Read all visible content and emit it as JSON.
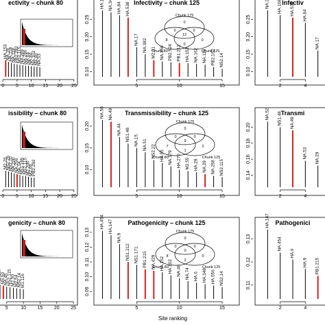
{
  "figure": {
    "xlabel": "Site ranking"
  },
  "chart_data": [
    {
      "type": "bar",
      "title": "ectivity – chunk 80",
      "xticks": [
        0,
        5,
        10,
        15,
        20,
        25
      ],
      "yticks": [],
      "bars": [
        {
          "x": 1,
          "value": 0.107,
          "label": "HA.153",
          "red": true
        },
        {
          "x": 2,
          "value": 0.104,
          "label": "NA.19"
        },
        {
          "x": 3,
          "value": 0.102,
          "label": "HA.118"
        },
        {
          "x": 4,
          "value": 0.1,
          "label": "NA.118"
        },
        {
          "x": 5,
          "value": 0.099,
          "label": "PB2.292"
        },
        {
          "x": 6,
          "value": 0.098,
          "label": "NS2.115"
        },
        {
          "x": 7,
          "value": 0.097,
          "label": "NA.286"
        },
        {
          "x": 8,
          "value": 0.096,
          "label": "NA.286"
        },
        {
          "x": 9,
          "value": 0.096,
          "label": "NA.64"
        },
        {
          "x": 10,
          "value": 0.095,
          "label": "NA.84"
        },
        {
          "x": 11,
          "value": 0.094,
          "label": "NA.102"
        },
        {
          "x": 12,
          "value": 0.094,
          "label": "NA.93"
        },
        {
          "x": 13,
          "value": 0.093,
          "label": "NA.53"
        }
      ]
    },
    {
      "type": "bar",
      "title": "Infectivity – chunk 125",
      "xticks": [
        5,
        10,
        15
      ],
      "yticks": [
        0.1,
        0.15,
        0.2,
        0.25
      ],
      "ylim": [
        0.085,
        0.29
      ],
      "bars": [
        {
          "x": 1,
          "value": 0.276,
          "label": "HA.108"
        },
        {
          "x": 2,
          "value": 0.27,
          "label": "NA.340"
        },
        {
          "x": 3,
          "value": 0.262,
          "label": "HA.84"
        },
        {
          "x": 4,
          "value": 0.255,
          "label": "HA.538",
          "red": true
        },
        {
          "x": 5,
          "value": 0.17,
          "label": "NA.17"
        },
        {
          "x": 6,
          "value": 0.15,
          "label": "NA.382"
        },
        {
          "x": 7,
          "value": 0.133,
          "label": "M2.31",
          "red": true
        },
        {
          "x": 8,
          "value": 0.129,
          "label": "NA.356"
        },
        {
          "x": 9,
          "value": 0.127,
          "label": "PB2.524"
        },
        {
          "x": 10,
          "value": 0.125,
          "label": "PB1.212",
          "red": true
        },
        {
          "x": 11,
          "value": 0.124,
          "label": "HA.152"
        },
        {
          "x": 12,
          "value": 0.122,
          "label": "NA.162"
        },
        {
          "x": 13,
          "value": 0.12,
          "label": "NA.116"
        },
        {
          "x": 14,
          "value": 0.113,
          "label": "PB2.162"
        },
        {
          "x": 15,
          "value": 0.108,
          "label": "NS2.14"
        }
      ],
      "venn": {
        "chunk175": "Chunk 175",
        "chunk80": "Chunk 80",
        "chunk125": "Chunk 125",
        "only175": "0",
        "only80": "8",
        "only125": "0",
        "a": "0",
        "b": "0",
        "c": "0",
        "center": "12"
      }
    },
    {
      "type": "bar",
      "title": "Infectiv",
      "xticks": [
        2,
        4
      ],
      "yticks": [
        0.1,
        0.15,
        0.2,
        0.25
      ],
      "ylim": [
        0.085,
        0.29
      ],
      "bars": [
        {
          "x": 1,
          "value": 0.276,
          "label": "NA.340"
        },
        {
          "x": 2,
          "value": 0.262,
          "label": "HA.108"
        },
        {
          "x": 3,
          "value": 0.255,
          "label": "HA.538",
          "red": true
        },
        {
          "x": 4,
          "value": 0.24,
          "label": "HA.84"
        },
        {
          "x": 5,
          "value": 0.16,
          "label": "NA.17"
        }
      ]
    },
    {
      "type": "bar",
      "title": "issibility – chunk 80",
      "xticks": [
        0,
        5,
        10,
        15,
        20,
        25
      ],
      "yticks": [],
      "bars": [
        {
          "x": 1,
          "value": 0.104,
          "label": "M2.26"
        },
        {
          "x": 2,
          "value": 0.103,
          "label": "NS2.26"
        },
        {
          "x": 3,
          "value": 0.102,
          "label": "NS2.70"
        },
        {
          "x": 4,
          "value": 0.101,
          "label": "NA.200"
        },
        {
          "x": 5,
          "value": 0.1,
          "label": "NA.256",
          "red": true
        },
        {
          "x": 6,
          "value": 0.099,
          "label": "HA.14"
        },
        {
          "x": 7,
          "value": 0.098,
          "label": "NS1.195"
        },
        {
          "x": 8,
          "value": 0.098,
          "label": "NS2.115"
        },
        {
          "x": 9,
          "value": 0.097,
          "label": "M2.200"
        },
        {
          "x": 10,
          "value": 0.096,
          "label": "M2.66"
        },
        {
          "x": 11,
          "value": 0.096,
          "label": "PB2.292"
        }
      ]
    },
    {
      "type": "bar",
      "title": "Transmissibility – chunk 125",
      "xticks": [
        5,
        10,
        15
      ],
      "yticks": [
        0.1,
        0.15,
        0.2
      ],
      "ylim": [
        0.06,
        0.225
      ],
      "bars": [
        {
          "x": 1,
          "value": 0.214,
          "label": "NA.50"
        },
        {
          "x": 2,
          "value": 0.21,
          "label": "NA.49",
          "red": true
        },
        {
          "x": 3,
          "value": 0.175,
          "label": "NA.44"
        },
        {
          "x": 4,
          "value": 0.16,
          "label": "NS1.48"
        },
        {
          "x": 5,
          "value": 0.15,
          "label": "NA.15"
        },
        {
          "x": 6,
          "value": 0.14,
          "label": "NA.51"
        },
        {
          "x": 7,
          "value": 0.122,
          "label": "NS2.22"
        },
        {
          "x": 8,
          "value": 0.115,
          "label": "HA.55"
        },
        {
          "x": 9,
          "value": 0.108,
          "label": "NA.179"
        },
        {
          "x": 10,
          "value": 0.1,
          "label": "HA.270"
        },
        {
          "x": 11,
          "value": 0.097,
          "label": "M2.55"
        },
        {
          "x": 12,
          "value": 0.094,
          "label": "HA.29"
        },
        {
          "x": 13,
          "value": 0.09,
          "label": "NA.29",
          "red": true
        },
        {
          "x": 14,
          "value": 0.086,
          "label": "NA.258"
        },
        {
          "x": 15,
          "value": 0.083,
          "label": "NS2.115"
        }
      ],
      "venn": {
        "chunk175": "Chunk 175",
        "chunk80": "Chunk 80",
        "chunk125": "Chunk 125",
        "only175": "0",
        "only80": "7",
        "only125": "2",
        "a": "0",
        "b": "0",
        "c": "1",
        "center": "9"
      }
    },
    {
      "type": "bar",
      "title": "Transmi",
      "xticks": [
        2,
        4
      ],
      "yticks": [
        0.14,
        0.16,
        0.18,
        0.2
      ],
      "ylim": [
        0.125,
        0.215
      ],
      "bars": [
        {
          "x": 1,
          "value": 0.207,
          "label": "NA.52"
        },
        {
          "x": 2,
          "value": 0.2,
          "label": "NS1.48"
        },
        {
          "x": 3,
          "value": 0.196,
          "label": "NA.49",
          "red": true
        },
        {
          "x": 4,
          "value": 0.158,
          "label": "NA.53"
        },
        {
          "x": 5,
          "value": 0.152,
          "label": "NA.29"
        }
      ]
    },
    {
      "type": "bar",
      "title": "genicity – chunk 80",
      "xticks": [
        5,
        10,
        15,
        20,
        25
      ],
      "yticks": [],
      "bars": [
        {
          "x": 1,
          "value": 0.108,
          "label": "NS1.171"
        },
        {
          "x": 2,
          "value": 0.106,
          "label": "PB1.374",
          "red": true
        },
        {
          "x": 3,
          "value": 0.104,
          "label": "NS.167"
        },
        {
          "x": 4,
          "value": 0.102,
          "label": "NS.50",
          "red": true
        },
        {
          "x": 5,
          "value": 0.1,
          "label": "NA.45"
        },
        {
          "x": 6,
          "value": 0.099,
          "label": "NS2.115"
        },
        {
          "x": 7,
          "value": 0.098,
          "label": "M2.50"
        },
        {
          "x": 8,
          "value": 0.097,
          "label": "M2.54"
        },
        {
          "x": 9,
          "value": 0.096,
          "label": "NS2.14"
        },
        {
          "x": 10,
          "value": 0.095,
          "label": "M1.116"
        }
      ]
    },
    {
      "type": "bar",
      "title": "Pathogenicity – chunk 125",
      "xticks": [
        5,
        10,
        15
      ],
      "yticks": [
        0.09,
        0.1,
        0.11,
        0.12,
        0.13
      ],
      "ylim": [
        0.085,
        0.135
      ],
      "bars": [
        {
          "x": 1,
          "value": 0.131,
          "label": "HA.454"
        },
        {
          "x": 2,
          "value": 0.128,
          "label": "HA.147"
        },
        {
          "x": 3,
          "value": 0.122,
          "label": "NA.9"
        },
        {
          "x": 4,
          "value": 0.11,
          "label": "NS1.212",
          "red": true
        },
        {
          "x": 5,
          "value": 0.108,
          "label": "NS1.171"
        },
        {
          "x": 6,
          "value": 0.105,
          "label": "PB1.215",
          "red": true
        },
        {
          "x": 7,
          "value": 0.104,
          "label": "NA.429",
          "red": true
        },
        {
          "x": 8,
          "value": 0.103,
          "label": "HA.152"
        },
        {
          "x": 9,
          "value": 0.101,
          "label": "HA.102"
        },
        {
          "x": 10,
          "value": 0.099,
          "label": "NA.48"
        },
        {
          "x": 11,
          "value": 0.097,
          "label": "NA.74"
        },
        {
          "x": 12,
          "value": 0.096,
          "label": "HA.6"
        },
        {
          "x": 13,
          "value": 0.095,
          "label": "HA.348"
        },
        {
          "x": 14,
          "value": 0.094,
          "label": "HA.556"
        },
        {
          "x": 15,
          "value": 0.093,
          "label": "NS2.14"
        }
      ],
      "venn": {
        "chunk175": "Chunk 175",
        "chunk80": "Chunk 80",
        "chunk125": "Chunk 125",
        "only175": "0",
        "only80": "8",
        "only125": "0",
        "a": "0",
        "b": "0",
        "c": "2",
        "center": "0"
      }
    },
    {
      "type": "bar",
      "title": "Pathogenici",
      "xticks": [
        2,
        4
      ],
      "yticks": [
        0.11,
        0.12,
        0.13
      ],
      "ylim": [
        0.104,
        0.136
      ],
      "bars": [
        {
          "x": 1,
          "value": 0.134,
          "label": "HA.147"
        },
        {
          "x": 2,
          "value": 0.124,
          "label": "NA.454"
        },
        {
          "x": 3,
          "value": 0.121,
          "label": "HA.6"
        },
        {
          "x": 4,
          "value": 0.117,
          "label": "HA.9"
        },
        {
          "x": 5,
          "value": 0.114,
          "label": "PB1.215",
          "red": true
        }
      ]
    }
  ]
}
